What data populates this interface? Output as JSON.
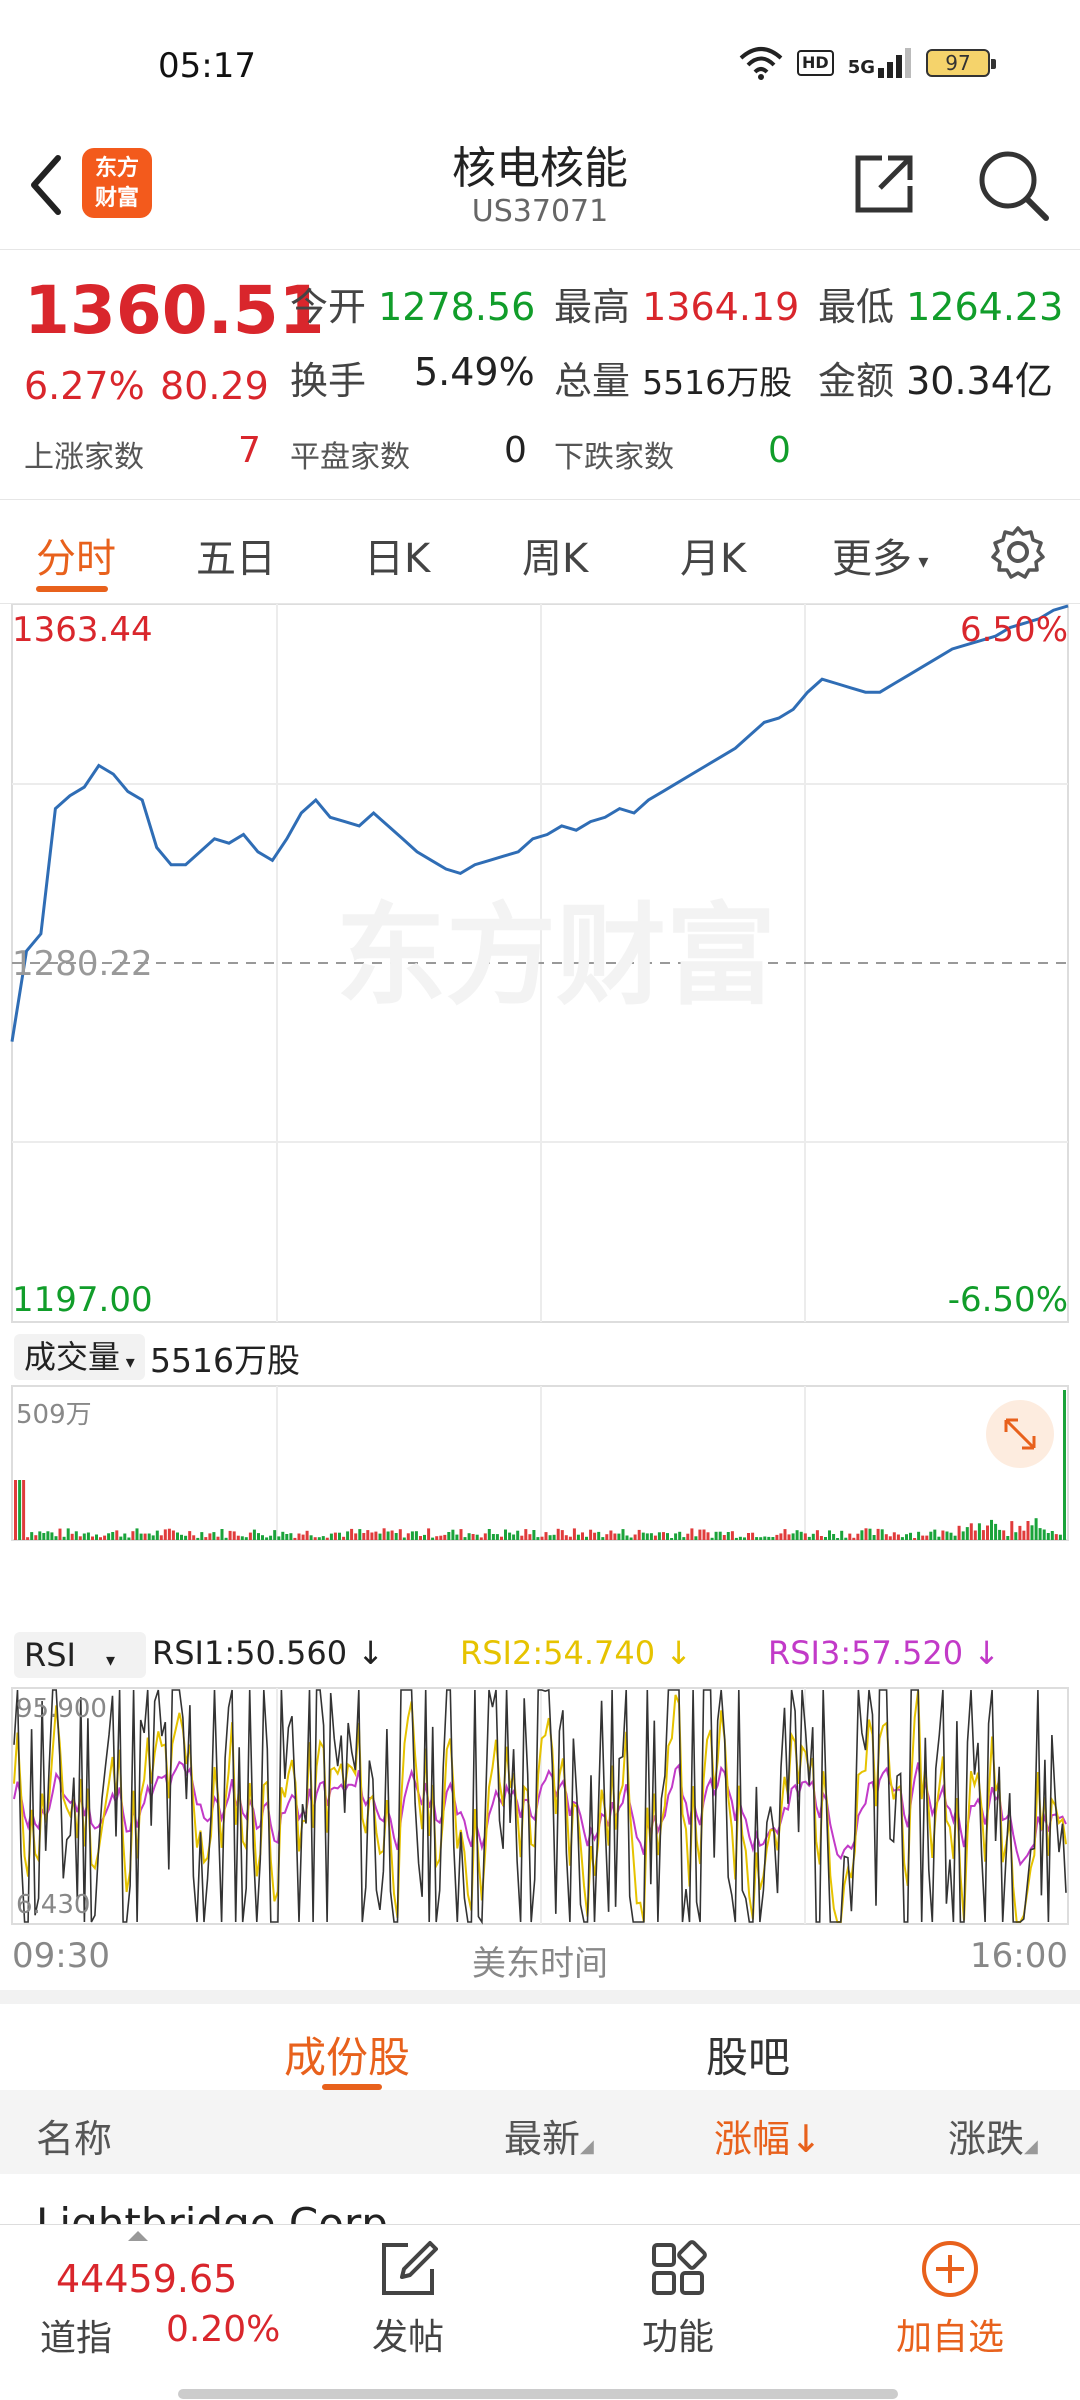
{
  "status": {
    "time": "05:17",
    "hd": "HD",
    "network": "5G",
    "battery": "97"
  },
  "header": {
    "logo_line1": "东方",
    "logo_line2": "财富",
    "title": "核电核能",
    "code": "US37071"
  },
  "quote": {
    "price": "1360.51",
    "change_pct": "6.27%",
    "change": "80.29",
    "open_label": "今开",
    "open": "1278.56",
    "high_label": "最高",
    "high": "1364.19",
    "low_label": "最低",
    "low": "1264.23",
    "turnover_label": "换手",
    "turnover": "5.49%",
    "volume_label": "总量",
    "volume": "5516万股",
    "amount_label": "金额",
    "amount": "30.34亿",
    "up_label": "上涨家数",
    "up": "7",
    "flat_label": "平盘家数",
    "flat": "0",
    "down_label": "下跌家数",
    "down": "0"
  },
  "tabs": [
    "分时",
    "五日",
    "日K",
    "周K",
    "月K",
    "更多"
  ],
  "chart": {
    "y_max": "1363.44",
    "y_mid": "1280.22",
    "y_min": "1197.00",
    "pct_max": "6.50%",
    "pct_min": "-6.50%",
    "watermark": "东方财富",
    "time_start": "09:30",
    "time_mid": "美东时间",
    "time_end": "16:00",
    "volume_selector": "成交量",
    "volume_total": "5516万股",
    "volume_max": "509万",
    "rsi_selector": "RSI",
    "rsi1": "RSI1:50.560",
    "rsi2": "RSI2:54.740",
    "rsi3": "RSI3:57.520",
    "rsi_max": "95.900",
    "rsi_min": "6.430"
  },
  "chart_data": {
    "type": "line",
    "title": "",
    "x_range": [
      "09:30",
      "16:00"
    ],
    "ylim": [
      1197.0,
      1363.44
    ],
    "prev_close": 1280.22,
    "series": [
      {
        "values": [
          1262,
          1283,
          1287,
          1316,
          1319,
          1321,
          1326,
          1324,
          1320,
          1318,
          1307,
          1303,
          1303,
          1306,
          1309,
          1308,
          1310,
          1306,
          1304,
          1309,
          1315,
          1318,
          1314,
          1313,
          1312,
          1315,
          1312,
          1309,
          1306,
          1304,
          1302,
          1301,
          1303,
          1304,
          1305,
          1306,
          1309,
          1310,
          1312,
          1311,
          1313,
          1314,
          1316,
          1315,
          1318,
          1320,
          1322,
          1324,
          1326,
          1328,
          1330,
          1333,
          1336,
          1337,
          1339,
          1343,
          1346,
          1345,
          1344,
          1343,
          1343,
          1345,
          1347,
          1349,
          1351,
          1353,
          1354,
          1355,
          1356,
          1358,
          1359,
          1360,
          1362,
          1363
        ]
      }
    ],
    "colors": {
      "price_line": "#2f6db5",
      "volume_up": "#e03b3b",
      "volume_down": "#1aa33a",
      "rsi1": "#333333",
      "rsi2": "#e6c300",
      "rsi3": "#c23ac8"
    }
  },
  "bottom_tabs": {
    "constituents": "成份股",
    "forum": "股吧"
  },
  "list_header": {
    "name": "名称",
    "latest": "最新",
    "change_pct": "涨幅",
    "change": "涨跌"
  },
  "first_row": "Lightbridge Corp",
  "navbar": {
    "index_value": "44459.65",
    "index_name": "道指",
    "index_pct": "0.20%",
    "post": "发帖",
    "functions": "功能",
    "add": "加自选"
  }
}
